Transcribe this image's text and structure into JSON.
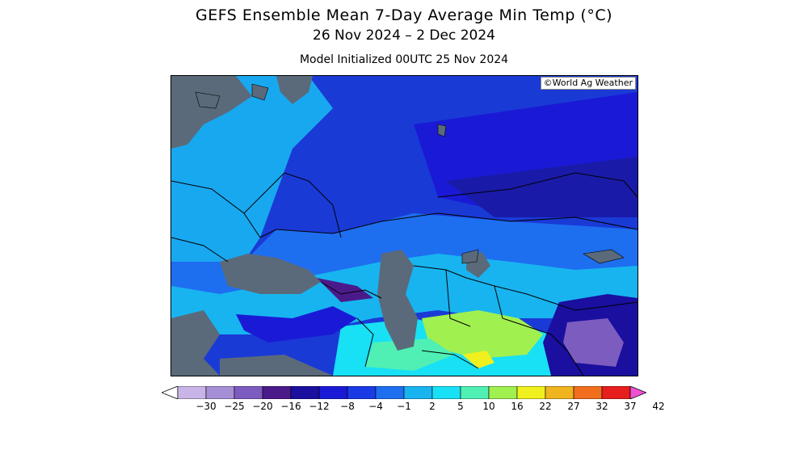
{
  "header": {
    "title": "GEFS Ensemble Mean 7-Day Average Min Temp (°C)",
    "subtitle": "26 Nov 2024 – 2 Dec 2024",
    "init": "Model Initialized 00UTC 25 Nov 2024"
  },
  "map": {
    "watermark": "©World Ag Weather",
    "water_color": "#5a6a7a"
  },
  "legend": {
    "ticks": [
      "−30",
      "−25",
      "−20",
      "−16",
      "−12",
      "−8",
      "−4",
      "−1",
      "2",
      "5",
      "10",
      "16",
      "22",
      "27",
      "32",
      "37",
      "42"
    ],
    "colors": [
      "#ffffff",
      "#c8b4e6",
      "#a58fd6",
      "#7d5cc0",
      "#4b1a8a",
      "#1a0f9e",
      "#1a1ad6",
      "#1a3ae6",
      "#1e6ef0",
      "#18b4f0",
      "#18e0f5",
      "#50f0b4",
      "#a0f050",
      "#f0f01e",
      "#f0b41e",
      "#f06e1e",
      "#e61e1e",
      "#f050d2"
    ]
  }
}
